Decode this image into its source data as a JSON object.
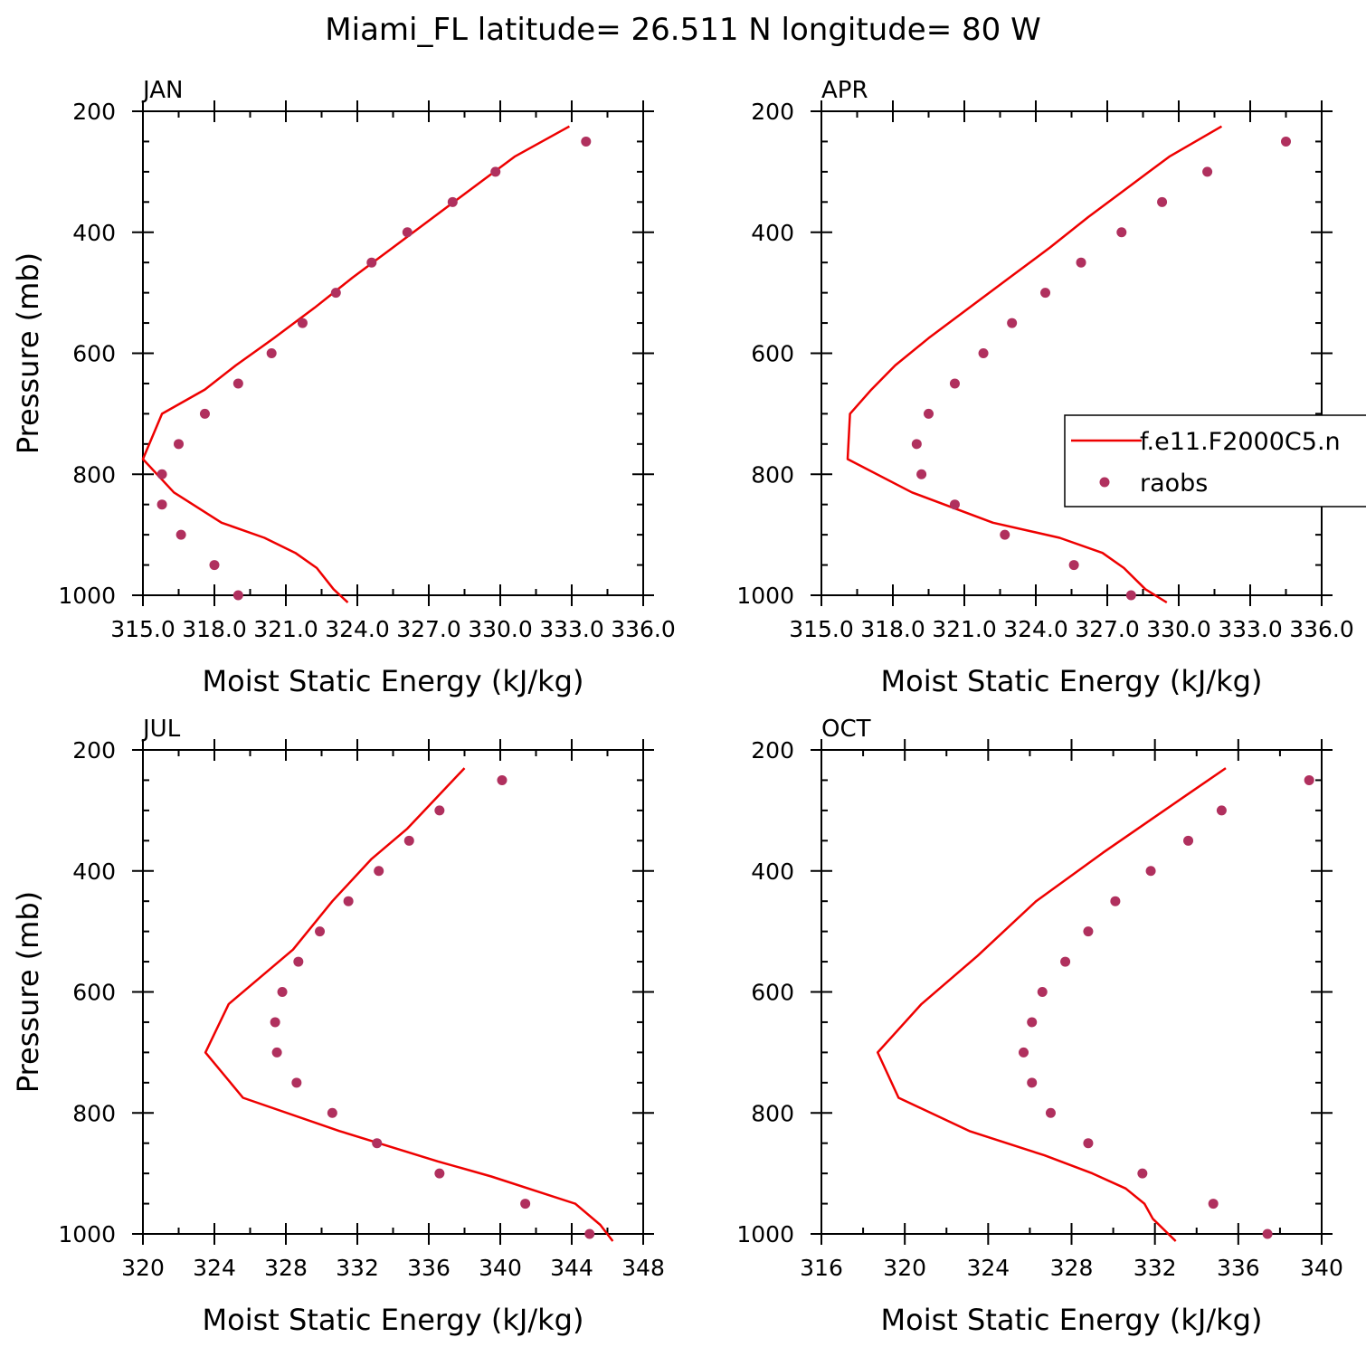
{
  "title": "Miami_FL  latitude= 26.511 N longitude= 80 W",
  "colors": {
    "model": "#ee0000",
    "obs": "#b0305e",
    "axis": "#000000"
  },
  "legend": {
    "model_label": "f.e11.F2000C5.n",
    "obs_label": "raobs",
    "placement": "right-middle of APR panel"
  },
  "chart_data": [
    {
      "type": "line+scatter",
      "panel": "JAN",
      "title": "JAN",
      "xlabel": "Moist Static Energy (kJ/kg)",
      "ylabel": "Pressure (mb)",
      "xlim": [
        315,
        336
      ],
      "ylim": [
        1000,
        200
      ],
      "x_ticks": [
        315,
        318,
        321,
        324,
        327,
        330,
        333,
        336
      ],
      "x_tick_labels": [
        "315.0",
        "318.0",
        "321.0",
        "324.0",
        "327.0",
        "330.0",
        "333.0",
        "336.0"
      ],
      "y_ticks": [
        200,
        400,
        600,
        800,
        1000
      ],
      "y_tick_labels": [
        "200",
        "400",
        "600",
        "800",
        "1000"
      ],
      "model": {
        "name": "f.e11.F2000C5.n",
        "pressure": [
          225,
          275,
          325,
          375,
          425,
          475,
          525,
          575,
          620,
          660,
          700,
          775,
          830,
          880,
          905,
          930,
          955,
          990,
          1012
        ],
        "mse": [
          332.9,
          330.6,
          328.9,
          327.2,
          325.5,
          323.8,
          322.2,
          320.5,
          318.9,
          317.6,
          315.8,
          315.0,
          316.3,
          318.3,
          320.1,
          321.4,
          322.3,
          323.0,
          323.6
        ]
      },
      "obs": {
        "name": "raobs",
        "pressure": [
          250,
          300,
          350,
          400,
          450,
          500,
          550,
          600,
          650,
          700,
          750,
          800,
          850,
          900,
          950,
          1000
        ],
        "mse": [
          333.6,
          329.8,
          328.0,
          326.1,
          324.6,
          323.1,
          321.7,
          320.4,
          319.0,
          317.6,
          316.5,
          315.8,
          315.8,
          316.6,
          318.0,
          319.0
        ]
      }
    },
    {
      "type": "line+scatter",
      "panel": "APR",
      "title": "APR",
      "xlabel": "Moist Static Energy (kJ/kg)",
      "ylabel": "",
      "xlim": [
        315,
        336
      ],
      "ylim": [
        1000,
        200
      ],
      "x_ticks": [
        315,
        318,
        321,
        324,
        327,
        330,
        333,
        336
      ],
      "x_tick_labels": [
        "315.0",
        "318.0",
        "321.0",
        "324.0",
        "327.0",
        "330.0",
        "333.0",
        "336.0"
      ],
      "y_ticks": [
        200,
        400,
        600,
        800,
        1000
      ],
      "y_tick_labels": [
        "200",
        "400",
        "600",
        "800",
        "1000"
      ],
      "model": {
        "name": "f.e11.F2000C5.n",
        "pressure": [
          225,
          275,
          325,
          375,
          425,
          475,
          525,
          575,
          620,
          660,
          700,
          775,
          830,
          880,
          905,
          930,
          955,
          990,
          1012
        ],
        "mse": [
          331.8,
          329.6,
          327.9,
          326.2,
          324.6,
          322.9,
          321.2,
          319.5,
          318.1,
          317.1,
          316.2,
          316.1,
          318.8,
          322.2,
          325.0,
          326.8,
          327.7,
          328.6,
          329.5
        ]
      },
      "obs": {
        "name": "raobs",
        "pressure": [
          250,
          300,
          350,
          400,
          450,
          500,
          550,
          600,
          650,
          700,
          750,
          800,
          850,
          900,
          950,
          1000
        ],
        "mse": [
          334.5,
          331.2,
          329.3,
          327.6,
          325.9,
          324.4,
          323.0,
          321.8,
          320.6,
          319.5,
          319.0,
          319.2,
          320.6,
          322.7,
          325.6,
          328.0
        ]
      }
    },
    {
      "type": "line+scatter",
      "panel": "JUL",
      "title": "JUL",
      "xlabel": "Moist Static Energy (kJ/kg)",
      "ylabel": "Pressure (mb)",
      "xlim": [
        320,
        348
      ],
      "ylim": [
        1000,
        200
      ],
      "x_ticks": [
        320,
        324,
        328,
        332,
        336,
        340,
        344,
        348
      ],
      "x_tick_labels": [
        "320",
        "324",
        "328",
        "332",
        "336",
        "340",
        "344",
        "348"
      ],
      "y_ticks": [
        200,
        400,
        600,
        800,
        1000
      ],
      "y_tick_labels": [
        "200",
        "400",
        "600",
        "800",
        "1000"
      ],
      "model": {
        "name": "f.e11.F2000C5.n",
        "pressure": [
          230,
          280,
          330,
          380,
          450,
          530,
          620,
          700,
          775,
          830,
          880,
          905,
          950,
          985,
          1012
        ],
        "mse": [
          338.0,
          336.4,
          334.8,
          332.8,
          330.6,
          328.4,
          324.8,
          323.5,
          325.6,
          331.0,
          336.5,
          339.5,
          344.2,
          345.6,
          346.3
        ]
      },
      "obs": {
        "name": "raobs",
        "pressure": [
          250,
          300,
          350,
          400,
          450,
          500,
          550,
          600,
          650,
          700,
          750,
          800,
          850,
          900,
          950,
          1000
        ],
        "mse": [
          340.1,
          336.6,
          334.9,
          333.2,
          331.5,
          329.9,
          328.7,
          327.8,
          327.4,
          327.5,
          328.6,
          330.6,
          333.1,
          336.6,
          341.4,
          345.0
        ]
      }
    },
    {
      "type": "line+scatter",
      "panel": "OCT",
      "title": "OCT",
      "xlabel": "Moist Static Energy (kJ/kg)",
      "ylabel": "",
      "xlim": [
        316,
        340
      ],
      "ylim": [
        1000,
        200
      ],
      "x_ticks": [
        316,
        320,
        324,
        328,
        332,
        336,
        340
      ],
      "x_tick_labels": [
        "316",
        "320",
        "324",
        "328",
        "332",
        "336",
        "340"
      ],
      "y_ticks": [
        200,
        400,
        600,
        800,
        1000
      ],
      "y_tick_labels": [
        "200",
        "400",
        "600",
        "800",
        "1000"
      ],
      "model": {
        "name": "f.e11.F2000C5.n",
        "pressure": [
          230,
          275,
          320,
          370,
          450,
          540,
          620,
          700,
          775,
          830,
          870,
          900,
          925,
          950,
          975,
          1012
        ],
        "mse": [
          335.4,
          333.5,
          331.6,
          329.5,
          326.3,
          323.5,
          320.8,
          318.7,
          319.7,
          323.1,
          326.7,
          329.0,
          330.6,
          331.5,
          331.9,
          333.0
        ]
      },
      "obs": {
        "name": "raobs",
        "pressure": [
          250,
          300,
          350,
          400,
          450,
          500,
          550,
          600,
          650,
          700,
          750,
          800,
          850,
          900,
          950,
          1000
        ],
        "mse": [
          339.4,
          335.2,
          333.6,
          331.8,
          330.1,
          328.8,
          327.7,
          326.6,
          326.1,
          325.7,
          326.1,
          327.0,
          328.8,
          331.4,
          334.8,
          337.4
        ]
      }
    }
  ]
}
